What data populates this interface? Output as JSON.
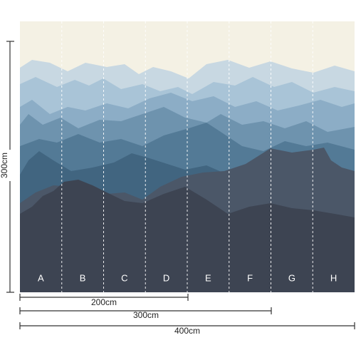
{
  "panels": [
    {
      "label": "A"
    },
    {
      "label": "B"
    },
    {
      "label": "C"
    },
    {
      "label": "D"
    },
    {
      "label": "E"
    },
    {
      "label": "F"
    },
    {
      "label": "G"
    },
    {
      "label": "H"
    }
  ],
  "height_label": "300cm",
  "width_labels": [
    "200cm",
    "300cm",
    "400cm"
  ]
}
